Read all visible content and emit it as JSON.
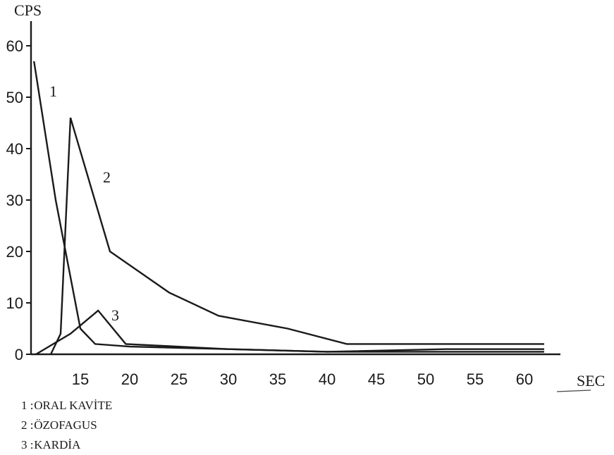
{
  "chart_data": {
    "type": "line",
    "title": "",
    "xlabel": "SEC",
    "ylabel": "CPS",
    "xlim": [
      10,
      63
    ],
    "ylim": [
      0,
      65
    ],
    "x_ticks": [
      15,
      20,
      25,
      30,
      35,
      40,
      45,
      50,
      55,
      60
    ],
    "y_ticks": [
      0,
      10,
      20,
      30,
      40,
      50,
      60
    ],
    "grid": false,
    "legend_position": "bottom-left",
    "series": [
      {
        "name": "1",
        "color": "#1a1a1a",
        "points": [
          [
            10.3,
            57
          ],
          [
            12.5,
            30
          ],
          [
            15,
            5
          ],
          [
            16.5,
            2
          ],
          [
            20,
            1.5
          ],
          [
            30,
            1
          ],
          [
            40,
            0.5
          ],
          [
            50,
            0.5
          ],
          [
            62,
            0.5
          ]
        ]
      },
      {
        "name": "2",
        "color": "#1a1a1a",
        "points": [
          [
            12,
            0
          ],
          [
            13,
            4
          ],
          [
            14,
            46
          ],
          [
            18,
            20
          ],
          [
            24,
            12
          ],
          [
            29,
            7.5
          ],
          [
            36,
            5
          ],
          [
            42,
            2
          ],
          [
            50,
            2
          ],
          [
            62,
            2
          ]
        ]
      },
      {
        "name": "3",
        "color": "#1a1a1a",
        "points": [
          [
            10.5,
            0
          ],
          [
            14,
            4
          ],
          [
            16.8,
            8.5
          ],
          [
            19.6,
            2
          ],
          [
            30,
            1
          ],
          [
            40,
            0.5
          ],
          [
            52,
            1
          ],
          [
            62,
            1
          ]
        ]
      }
    ],
    "legend": [
      {
        "number": "1 :",
        "label": "ORAL KAVİTE"
      },
      {
        "number": "2 :",
        "label": "ÖZOFAGUS"
      },
      {
        "number": "3 :",
        "label": "KARDİA"
      }
    ]
  }
}
